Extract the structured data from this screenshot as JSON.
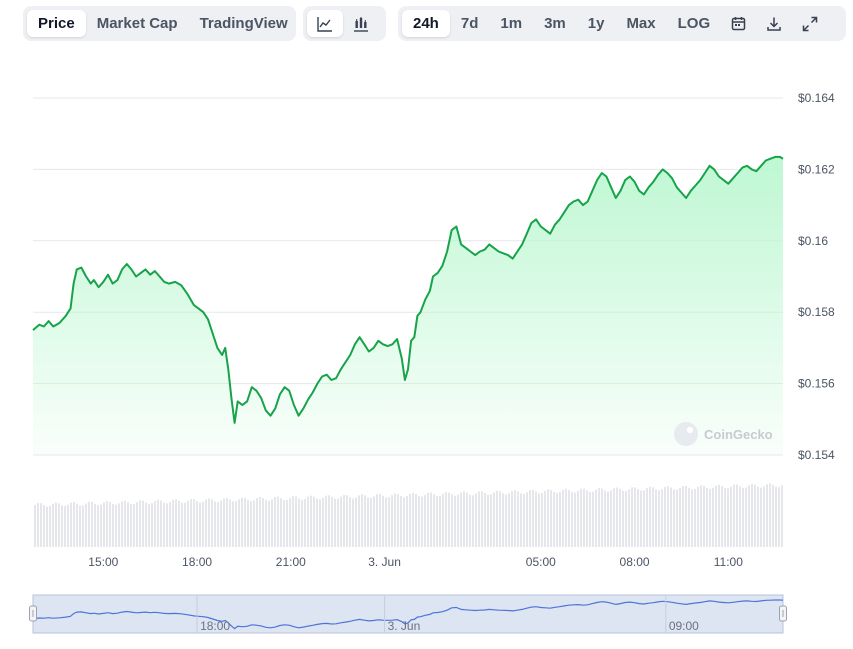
{
  "toolbar": {
    "view_tabs": [
      {
        "label": "Price",
        "active": true
      },
      {
        "label": "Market Cap",
        "active": false
      },
      {
        "label": "TradingView",
        "active": false
      }
    ],
    "chart_types": [
      {
        "icon": "line-chart-icon",
        "active": true
      },
      {
        "icon": "candlestick-chart-icon",
        "active": false
      }
    ],
    "ranges": [
      {
        "label": "24h",
        "active": true
      },
      {
        "label": "7d",
        "active": false
      },
      {
        "label": "1m",
        "active": false
      },
      {
        "label": "3m",
        "active": false
      },
      {
        "label": "1y",
        "active": false
      },
      {
        "label": "Max",
        "active": false
      },
      {
        "label": "LOG",
        "active": false
      }
    ],
    "actions": [
      {
        "icon": "calendar-icon"
      },
      {
        "icon": "download-icon"
      },
      {
        "icon": "expand-icon"
      }
    ]
  },
  "watermark": "CoinGecko",
  "chart_data": {
    "type": "area",
    "title": "",
    "xlabel": "",
    "ylabel": "",
    "ylim": [
      0.154,
      0.164
    ],
    "y_ticks": [
      0.154,
      0.156,
      0.158,
      0.16,
      0.162,
      0.164
    ],
    "y_tick_labels": [
      "$0.154",
      "$0.156",
      "$0.158",
      "$0.16",
      "$0.162",
      "$0.164"
    ],
    "xlim": [
      "12:45",
      "12:45 next day"
    ],
    "x_ticks": [
      {
        "label": "15:00",
        "hour": 15
      },
      {
        "label": "18:00",
        "hour": 18
      },
      {
        "label": "21:00",
        "hour": 21
      },
      {
        "label": "3. Jun",
        "hour": 24
      },
      {
        "label": "05:00",
        "hour": 29
      },
      {
        "label": "08:00",
        "hour": 32
      },
      {
        "label": "11:00",
        "hour": 35
      }
    ],
    "x_start_hour": 12.75,
    "x_end_hour": 36.75,
    "colors": {
      "line": "#16a34a",
      "fill": "#bbf7d0",
      "volume": "#e5e7eb",
      "navigator_line": "#4f74d9",
      "navigator_bg": "#dde4f2"
    },
    "grid": true,
    "price_series": [
      [
        12.75,
        0.1575
      ],
      [
        12.95,
        0.15765
      ],
      [
        13.1,
        0.1576
      ],
      [
        13.25,
        0.15775
      ],
      [
        13.4,
        0.1576
      ],
      [
        13.6,
        0.1577
      ],
      [
        13.8,
        0.1579
      ],
      [
        13.95,
        0.1581
      ],
      [
        14.05,
        0.1588
      ],
      [
        14.15,
        0.1592
      ],
      [
        14.3,
        0.15925
      ],
      [
        14.45,
        0.159
      ],
      [
        14.6,
        0.1588
      ],
      [
        14.7,
        0.1589
      ],
      [
        14.85,
        0.1587
      ],
      [
        15.0,
        0.15885
      ],
      [
        15.15,
        0.15905
      ],
      [
        15.3,
        0.1588
      ],
      [
        15.45,
        0.1589
      ],
      [
        15.6,
        0.1592
      ],
      [
        15.75,
        0.15935
      ],
      [
        15.9,
        0.1592
      ],
      [
        16.05,
        0.159
      ],
      [
        16.2,
        0.1591
      ],
      [
        16.35,
        0.1592
      ],
      [
        16.5,
        0.15905
      ],
      [
        16.65,
        0.15915
      ],
      [
        16.8,
        0.159
      ],
      [
        16.95,
        0.15885
      ],
      [
        17.1,
        0.1588
      ],
      [
        17.3,
        0.15885
      ],
      [
        17.5,
        0.15875
      ],
      [
        17.7,
        0.1585
      ],
      [
        17.9,
        0.1582
      ],
      [
        18.05,
        0.1581
      ],
      [
        18.2,
        0.158
      ],
      [
        18.35,
        0.1578
      ],
      [
        18.5,
        0.1574
      ],
      [
        18.65,
        0.157
      ],
      [
        18.8,
        0.1568
      ],
      [
        18.9,
        0.157
      ],
      [
        19.0,
        0.1564
      ],
      [
        19.1,
        0.1556
      ],
      [
        19.2,
        0.1549
      ],
      [
        19.3,
        0.1555
      ],
      [
        19.45,
        0.1554
      ],
      [
        19.6,
        0.1555
      ],
      [
        19.75,
        0.1559
      ],
      [
        19.9,
        0.1558
      ],
      [
        20.05,
        0.1556
      ],
      [
        20.2,
        0.15525
      ],
      [
        20.35,
        0.1551
      ],
      [
        20.5,
        0.1553
      ],
      [
        20.65,
        0.1557
      ],
      [
        20.8,
        0.1559
      ],
      [
        20.95,
        0.1558
      ],
      [
        21.1,
        0.1554
      ],
      [
        21.25,
        0.1551
      ],
      [
        21.4,
        0.1553
      ],
      [
        21.55,
        0.15555
      ],
      [
        21.7,
        0.15575
      ],
      [
        21.85,
        0.156
      ],
      [
        22.0,
        0.1562
      ],
      [
        22.15,
        0.15625
      ],
      [
        22.3,
        0.1561
      ],
      [
        22.45,
        0.15615
      ],
      [
        22.6,
        0.1564
      ],
      [
        22.75,
        0.1566
      ],
      [
        22.9,
        0.1568
      ],
      [
        23.05,
        0.1571
      ],
      [
        23.2,
        0.1573
      ],
      [
        23.35,
        0.1571
      ],
      [
        23.5,
        0.1569
      ],
      [
        23.65,
        0.157
      ],
      [
        23.8,
        0.1572
      ],
      [
        23.95,
        0.1571
      ],
      [
        24.1,
        0.15705
      ],
      [
        24.25,
        0.1571
      ],
      [
        24.4,
        0.15725
      ],
      [
        24.55,
        0.1567
      ],
      [
        24.65,
        0.1561
      ],
      [
        24.75,
        0.1564
      ],
      [
        24.85,
        0.1572
      ],
      [
        24.95,
        0.1573
      ],
      [
        25.05,
        0.1579
      ],
      [
        25.15,
        0.158
      ],
      [
        25.3,
        0.15835
      ],
      [
        25.45,
        0.1586
      ],
      [
        25.55,
        0.159
      ],
      [
        25.7,
        0.1591
      ],
      [
        25.85,
        0.1593
      ],
      [
        26.0,
        0.1597
      ],
      [
        26.15,
        0.1603
      ],
      [
        26.3,
        0.1604
      ],
      [
        26.45,
        0.1599
      ],
      [
        26.6,
        0.1598
      ],
      [
        26.75,
        0.1597
      ],
      [
        26.9,
        0.1596
      ],
      [
        27.05,
        0.1597
      ],
      [
        27.2,
        0.15975
      ],
      [
        27.35,
        0.1599
      ],
      [
        27.5,
        0.1598
      ],
      [
        27.65,
        0.1597
      ],
      [
        27.8,
        0.15965
      ],
      [
        27.95,
        0.1596
      ],
      [
        28.1,
        0.1595
      ],
      [
        28.25,
        0.1597
      ],
      [
        28.4,
        0.1599
      ],
      [
        28.55,
        0.1602
      ],
      [
        28.7,
        0.1605
      ],
      [
        28.85,
        0.1606
      ],
      [
        29.0,
        0.1604
      ],
      [
        29.15,
        0.1603
      ],
      [
        29.3,
        0.1602
      ],
      [
        29.45,
        0.16045
      ],
      [
        29.6,
        0.1606
      ],
      [
        29.75,
        0.1608
      ],
      [
        29.9,
        0.161
      ],
      [
        30.05,
        0.1611
      ],
      [
        30.2,
        0.16115
      ],
      [
        30.35,
        0.161
      ],
      [
        30.5,
        0.1611
      ],
      [
        30.65,
        0.1614
      ],
      [
        30.8,
        0.1617
      ],
      [
        30.95,
        0.1619
      ],
      [
        31.1,
        0.1618
      ],
      [
        31.25,
        0.1615
      ],
      [
        31.4,
        0.1612
      ],
      [
        31.55,
        0.1614
      ],
      [
        31.7,
        0.1617
      ],
      [
        31.85,
        0.1618
      ],
      [
        32.0,
        0.16165
      ],
      [
        32.15,
        0.1614
      ],
      [
        32.3,
        0.1613
      ],
      [
        32.45,
        0.1615
      ],
      [
        32.6,
        0.16165
      ],
      [
        32.75,
        0.16185
      ],
      [
        32.9,
        0.162
      ],
      [
        33.05,
        0.1619
      ],
      [
        33.2,
        0.16175
      ],
      [
        33.35,
        0.1615
      ],
      [
        33.5,
        0.16135
      ],
      [
        33.65,
        0.1612
      ],
      [
        33.8,
        0.1614
      ],
      [
        33.95,
        0.16155
      ],
      [
        34.1,
        0.1617
      ],
      [
        34.25,
        0.1619
      ],
      [
        34.4,
        0.1621
      ],
      [
        34.55,
        0.162
      ],
      [
        34.7,
        0.1618
      ],
      [
        34.85,
        0.1617
      ],
      [
        35.0,
        0.1616
      ],
      [
        35.15,
        0.16175
      ],
      [
        35.3,
        0.1619
      ],
      [
        35.45,
        0.16205
      ],
      [
        35.6,
        0.1621
      ],
      [
        35.75,
        0.162
      ],
      [
        35.9,
        0.16195
      ],
      [
        36.05,
        0.1621
      ],
      [
        36.2,
        0.16225
      ],
      [
        36.35,
        0.1623
      ],
      [
        36.5,
        0.16235
      ],
      [
        36.65,
        0.16235
      ],
      [
        36.75,
        0.1623
      ]
    ]
  },
  "navigator": {
    "labels": [
      {
        "label": "18:00",
        "hour": 18
      },
      {
        "label": "3. Jun",
        "hour": 24
      },
      {
        "label": "09:00",
        "hour": 33
      }
    ]
  }
}
